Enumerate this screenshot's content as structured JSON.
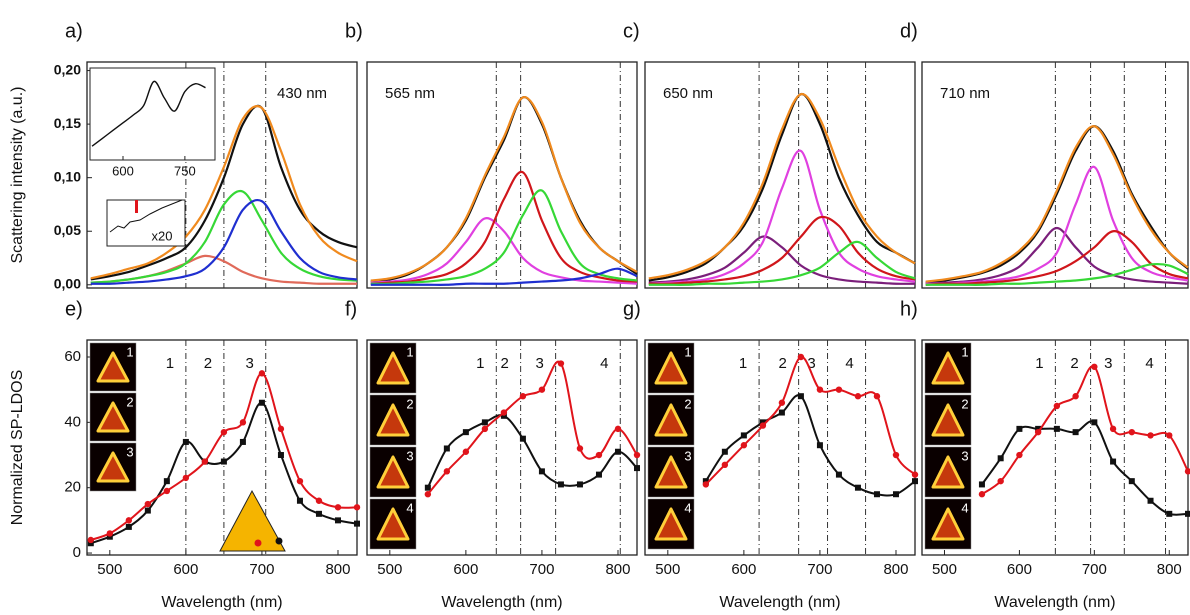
{
  "chart_data": [
    {
      "type": "line",
      "panel": "a)",
      "annotation": "430 nm",
      "ylabel": "Scattering intensity (a.u.)",
      "x": [
        475,
        500,
        525,
        550,
        575,
        600,
        625,
        650,
        675,
        700,
        725,
        750,
        775,
        800,
        825
      ],
      "xlim": [
        470,
        825
      ],
      "ylim": [
        -0.003,
        0.208
      ],
      "yticks": [
        {
          "value": 0,
          "label": "0,00"
        },
        {
          "value": 0.05,
          "label": "0,05"
        },
        {
          "value": 0.1,
          "label": "0,10"
        },
        {
          "value": 0.15,
          "label": "0,15"
        },
        {
          "value": 0.2,
          "label": "0,20"
        }
      ],
      "vlines": [
        600,
        650,
        705
      ],
      "series": [
        {
          "color": "#111111",
          "values": [
            0.005,
            0.008,
            0.012,
            0.018,
            0.025,
            0.035,
            0.06,
            0.1,
            0.15,
            0.165,
            0.11,
            0.07,
            0.05,
            0.04,
            0.035
          ]
        },
        {
          "color": "#e06a5a",
          "values": [
            0.002,
            0.003,
            0.005,
            0.008,
            0.013,
            0.02,
            0.027,
            0.022,
            0.012,
            0.006,
            0.003,
            0.002,
            0.001,
            0.001,
            0.001
          ]
        },
        {
          "color": "#36d836",
          "values": [
            0.002,
            0.003,
            0.005,
            0.008,
            0.012,
            0.02,
            0.04,
            0.075,
            0.087,
            0.06,
            0.03,
            0.015,
            0.008,
            0.005,
            0.004
          ]
        },
        {
          "color": "#1f2fd0",
          "values": [
            0.001,
            0.001,
            0.002,
            0.003,
            0.005,
            0.008,
            0.015,
            0.035,
            0.07,
            0.078,
            0.05,
            0.025,
            0.012,
            0.007,
            0.005
          ]
        },
        {
          "color": "#f08a1e",
          "values": [
            0.006,
            0.01,
            0.015,
            0.02,
            0.03,
            0.045,
            0.07,
            0.11,
            0.155,
            0.165,
            0.125,
            0.075,
            0.045,
            0.03,
            0.022
          ]
        }
      ],
      "inset": {
        "x": [
          525,
          550,
          575,
          600,
          625,
          650,
          675,
          700,
          725,
          750,
          775,
          800
        ],
        "values": [
          0.1,
          0.2,
          0.3,
          0.4,
          0.5,
          0.62,
          0.93,
          0.72,
          0.55,
          0.8,
          0.9,
          0.85
        ],
        "xlim": [
          520,
          823
        ],
        "ylim": [
          0,
          1
        ],
        "xticks": [
          600,
          750
        ]
      },
      "inset_label": "x20"
    },
    {
      "type": "line",
      "panel": "b)",
      "annotation": "565 nm",
      "x": [
        475,
        500,
        525,
        550,
        575,
        600,
        625,
        650,
        675,
        700,
        725,
        750,
        775,
        800,
        825
      ],
      "xlim": [
        470,
        825
      ],
      "ylim": [
        -0.003,
        0.208
      ],
      "vlines": [
        640,
        672,
        803
      ],
      "series": [
        {
          "color": "#111111",
          "values": [
            0.003,
            0.005,
            0.01,
            0.02,
            0.035,
            0.06,
            0.1,
            0.135,
            0.175,
            0.15,
            0.1,
            0.06,
            0.035,
            0.022,
            0.01
          ]
        },
        {
          "color": "#e040e0",
          "values": [
            0.002,
            0.003,
            0.005,
            0.01,
            0.02,
            0.04,
            0.062,
            0.05,
            0.025,
            0.012,
            0.007,
            0.004,
            0.003,
            0.002,
            0.001
          ]
        },
        {
          "color": "#d0161b",
          "values": [
            0.001,
            0.002,
            0.003,
            0.006,
            0.01,
            0.02,
            0.04,
            0.08,
            0.105,
            0.06,
            0.025,
            0.012,
            0.007,
            0.004,
            0.003
          ]
        },
        {
          "color": "#36d836",
          "values": [
            0.001,
            0.001,
            0.002,
            0.003,
            0.005,
            0.008,
            0.015,
            0.03,
            0.065,
            0.088,
            0.05,
            0.02,
            0.01,
            0.006,
            0.004
          ]
        },
        {
          "color": "#1f2fd0",
          "values": [
            0,
            0,
            0,
            0,
            0,
            0.001,
            0.001,
            0.001,
            0.002,
            0.003,
            0.004,
            0.006,
            0.01,
            0.015,
            0.008
          ]
        },
        {
          "color": "#f08a1e",
          "values": [
            0.004,
            0.006,
            0.011,
            0.02,
            0.035,
            0.062,
            0.102,
            0.138,
            0.175,
            0.152,
            0.1,
            0.058,
            0.035,
            0.022,
            0.012
          ]
        }
      ]
    },
    {
      "type": "line",
      "panel": "c)",
      "annotation": "650 nm",
      "x": [
        475,
        500,
        525,
        550,
        575,
        600,
        625,
        650,
        675,
        700,
        725,
        750,
        775,
        800,
        825
      ],
      "xlim": [
        470,
        825
      ],
      "ylim": [
        -0.003,
        0.208
      ],
      "vlines": [
        620,
        672,
        710,
        760
      ],
      "series": [
        {
          "color": "#111111",
          "values": [
            0.004,
            0.007,
            0.012,
            0.02,
            0.035,
            0.055,
            0.09,
            0.14,
            0.178,
            0.15,
            0.1,
            0.065,
            0.04,
            0.03,
            0.02
          ]
        },
        {
          "color": "#7b1f7b",
          "values": [
            0.002,
            0.003,
            0.005,
            0.009,
            0.016,
            0.03,
            0.045,
            0.035,
            0.018,
            0.009,
            0.005,
            0.003,
            0.002,
            0.001,
            0.001
          ]
        },
        {
          "color": "#e040e0",
          "values": [
            0.001,
            0.002,
            0.003,
            0.005,
            0.01,
            0.02,
            0.04,
            0.09,
            0.125,
            0.07,
            0.03,
            0.015,
            0.008,
            0.005,
            0.003
          ]
        },
        {
          "color": "#d0161b",
          "values": [
            0.001,
            0.001,
            0.002,
            0.003,
            0.005,
            0.008,
            0.014,
            0.025,
            0.045,
            0.063,
            0.055,
            0.03,
            0.015,
            0.008,
            0.005
          ]
        },
        {
          "color": "#36d836",
          "values": [
            0,
            0,
            0,
            0.001,
            0.001,
            0.002,
            0.003,
            0.005,
            0.009,
            0.016,
            0.03,
            0.04,
            0.025,
            0.012,
            0.006
          ]
        },
        {
          "color": "#f08a1e",
          "values": [
            0.006,
            0.009,
            0.014,
            0.022,
            0.035,
            0.058,
            0.095,
            0.145,
            0.178,
            0.155,
            0.11,
            0.07,
            0.045,
            0.03,
            0.02
          ]
        }
      ]
    },
    {
      "type": "line",
      "panel": "d)",
      "annotation": "710 nm",
      "x": [
        475,
        500,
        525,
        550,
        575,
        600,
        625,
        650,
        675,
        700,
        725,
        750,
        775,
        800,
        825
      ],
      "xlim": [
        470,
        825
      ],
      "ylim": [
        -0.003,
        0.208
      ],
      "vlines": [
        648,
        695,
        740,
        795
      ],
      "series": [
        {
          "color": "#111111",
          "values": [
            0.002,
            0.004,
            0.007,
            0.011,
            0.018,
            0.03,
            0.05,
            0.085,
            0.125,
            0.148,
            0.125,
            0.085,
            0.055,
            0.03,
            0.015
          ]
        },
        {
          "color": "#7b1f7b",
          "values": [
            0.001,
            0.002,
            0.003,
            0.005,
            0.009,
            0.017,
            0.035,
            0.053,
            0.035,
            0.017,
            0.009,
            0.005,
            0.003,
            0.002,
            0.001
          ]
        },
        {
          "color": "#e040e0",
          "values": [
            0.001,
            0.001,
            0.002,
            0.003,
            0.005,
            0.008,
            0.015,
            0.03,
            0.075,
            0.11,
            0.06,
            0.025,
            0.012,
            0.007,
            0.004
          ]
        },
        {
          "color": "#d0161b",
          "values": [
            0,
            0.001,
            0.001,
            0.002,
            0.003,
            0.005,
            0.008,
            0.013,
            0.022,
            0.035,
            0.05,
            0.04,
            0.02,
            0.01,
            0.006
          ]
        },
        {
          "color": "#36d836",
          "values": [
            0,
            0,
            0,
            0,
            0.001,
            0.001,
            0.002,
            0.003,
            0.004,
            0.006,
            0.009,
            0.014,
            0.019,
            0.018,
            0.01
          ]
        },
        {
          "color": "#f08a1e",
          "values": [
            0.003,
            0.005,
            0.008,
            0.012,
            0.02,
            0.032,
            0.052,
            0.088,
            0.128,
            0.148,
            0.122,
            0.083,
            0.052,
            0.03,
            0.016
          ]
        }
      ]
    },
    {
      "type": "line",
      "panel": "e)",
      "ylabel": "Normalized SP-LDOS",
      "xlabel": "Wavelength (nm)",
      "x": [
        475,
        500,
        525,
        550,
        575,
        600,
        625,
        650,
        675,
        700,
        725,
        750,
        775,
        800,
        825
      ],
      "xlim": [
        470,
        825
      ],
      "ylim": [
        -0.6,
        65.2
      ],
      "xticks": [
        500,
        600,
        700,
        800
      ],
      "yticks": [
        0,
        20,
        40,
        60
      ],
      "vlines": [
        600,
        650,
        705
      ],
      "modes": [
        "1",
        "2",
        "3"
      ],
      "series": [
        {
          "color": "#111111",
          "marker": "square",
          "values": [
            3,
            5,
            8,
            13,
            22,
            34,
            28,
            28,
            34,
            46,
            30,
            16,
            12,
            10,
            9
          ]
        },
        {
          "color": "#e0141b",
          "marker": "circle",
          "values": [
            4,
            6,
            10,
            15,
            19,
            23,
            28,
            37,
            40,
            55,
            38,
            22,
            16,
            14,
            14
          ]
        }
      ]
    },
    {
      "type": "line",
      "panel": "f)",
      "xlabel": "Wavelength (nm)",
      "x": [
        475,
        500,
        525,
        550,
        575,
        600,
        625,
        650,
        675,
        700,
        725,
        750,
        775,
        800,
        825
      ],
      "xlim": [
        470,
        825
      ],
      "ylim": [
        -0.6,
        65.2
      ],
      "xticks": [
        500,
        600,
        700,
        800
      ],
      "vlines": [
        640,
        672,
        718,
        803
      ],
      "modes": [
        "1",
        "2",
        "3",
        "4"
      ],
      "series": [
        {
          "color": "#111111",
          "marker": "square",
          "values": [
            null,
            null,
            null,
            20,
            32,
            37,
            40,
            42,
            35,
            25,
            21,
            21,
            24,
            31,
            26
          ]
        },
        {
          "color": "#e0141b",
          "marker": "circle",
          "values": [
            null,
            null,
            null,
            18,
            25,
            31,
            38,
            43,
            48,
            50,
            58,
            32,
            30,
            38,
            30
          ]
        }
      ]
    },
    {
      "type": "line",
      "panel": "g)",
      "xlabel": "Wavelength (nm)",
      "x": [
        475,
        500,
        525,
        550,
        575,
        600,
        625,
        650,
        675,
        700,
        725,
        750,
        775,
        800,
        825
      ],
      "xlim": [
        470,
        825
      ],
      "ylim": [
        -0.6,
        65.2
      ],
      "xticks": [
        500,
        600,
        700,
        800
      ],
      "vlines": [
        620,
        672,
        710,
        760
      ],
      "modes": [
        "1",
        "2",
        "3",
        "4"
      ],
      "series": [
        {
          "color": "#111111",
          "marker": "square",
          "values": [
            null,
            null,
            null,
            22,
            31,
            36,
            40,
            43,
            48,
            33,
            24,
            20,
            18,
            18,
            22
          ]
        },
        {
          "color": "#e0141b",
          "marker": "circle",
          "values": [
            null,
            null,
            null,
            21,
            27,
            33,
            39,
            46,
            60,
            50,
            50,
            48,
            48,
            30,
            24
          ]
        }
      ]
    },
    {
      "type": "line",
      "panel": "h)",
      "xlabel": "Wavelength (nm)",
      "x": [
        475,
        500,
        525,
        550,
        575,
        600,
        625,
        650,
        675,
        700,
        725,
        750,
        775,
        800,
        825
      ],
      "xlim": [
        470,
        825
      ],
      "ylim": [
        -0.6,
        65.2
      ],
      "xticks": [
        500,
        600,
        700,
        800
      ],
      "vlines": [
        648,
        695,
        740,
        795
      ],
      "modes": [
        "1",
        "2",
        "3",
        "4"
      ],
      "series": [
        {
          "color": "#111111",
          "marker": "square",
          "values": [
            null,
            null,
            null,
            21,
            29,
            38,
            38,
            38,
            37,
            40,
            28,
            22,
            16,
            12,
            12
          ]
        },
        {
          "color": "#e0141b",
          "marker": "circle",
          "values": [
            null,
            null,
            null,
            18,
            22,
            30,
            37,
            45,
            48,
            57,
            38,
            37,
            36,
            36,
            25
          ]
        }
      ]
    }
  ]
}
